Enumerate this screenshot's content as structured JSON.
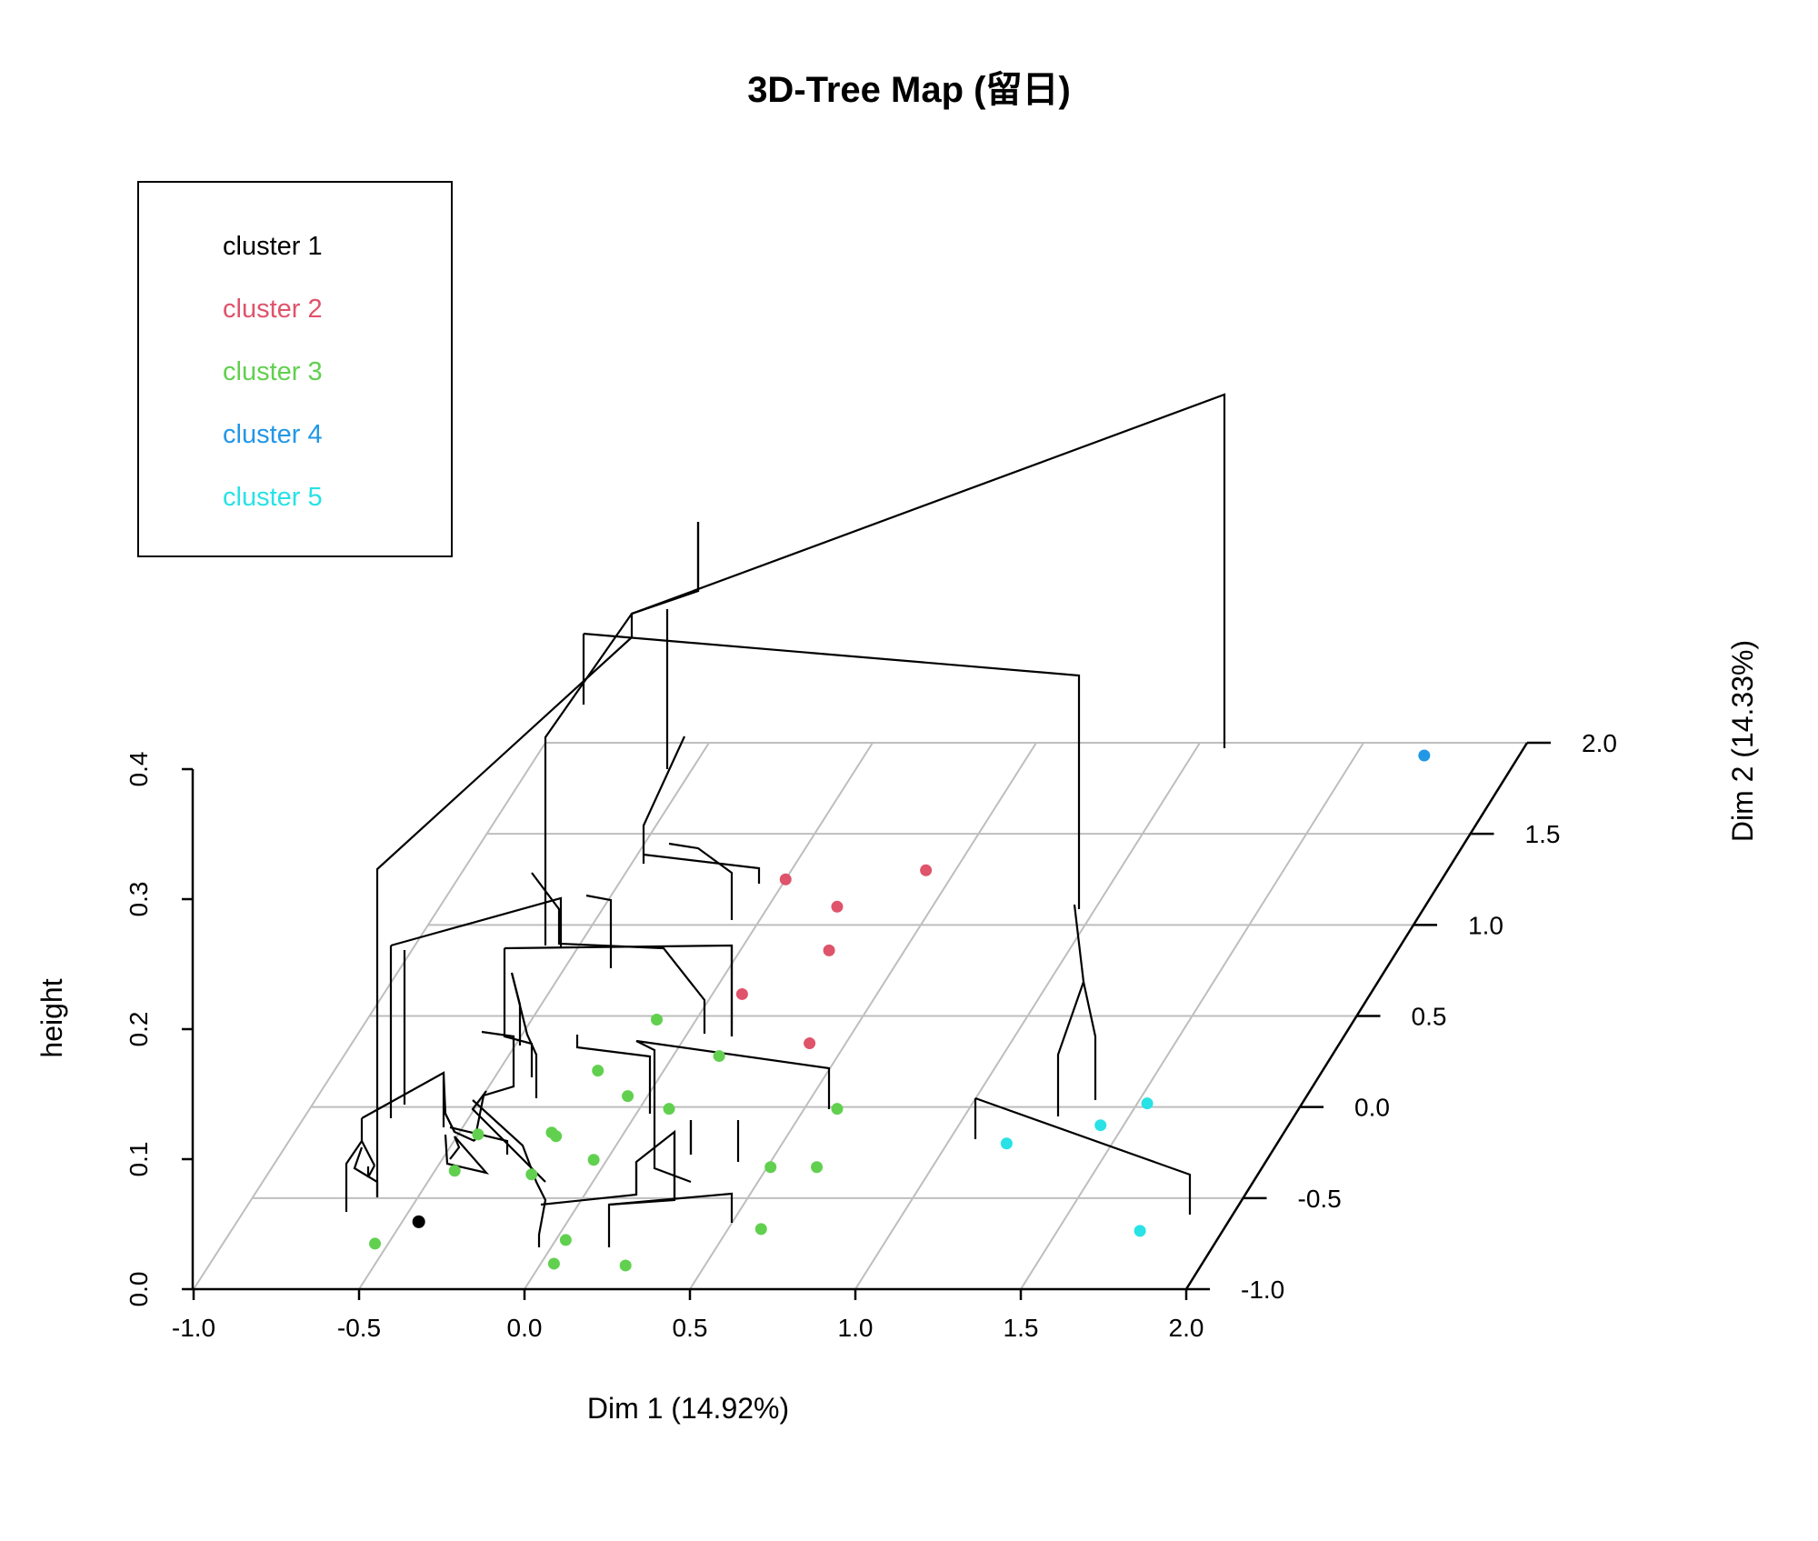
{
  "chart_data": {
    "type": "3d-tree-map",
    "title": "3D-Tree Map (留日)",
    "xlabel": "Dim 1 (14.92%)",
    "ylabel": "Dim 2 (14.33%)",
    "zlabel": "height",
    "xlim": [
      -1.0,
      2.0
    ],
    "ylim": [
      -1.0,
      2.0
    ],
    "zlim": [
      0.0,
      0.4
    ],
    "x_ticks": [
      "-1.0",
      "-0.5",
      "0.0",
      "0.5",
      "1.0",
      "1.5",
      "2.0"
    ],
    "y_ticks": [
      "-1.0",
      "-0.5",
      "0.0",
      "0.5",
      "1.0",
      "1.5",
      "2.0"
    ],
    "z_ticks": [
      "0.0",
      "0.1",
      "0.2",
      "0.3",
      "0.4"
    ],
    "legend": [
      {
        "label": "cluster 1",
        "color": "#000000"
      },
      {
        "label": "cluster 2",
        "color": "#DF536B"
      },
      {
        "label": "cluster 3",
        "color": "#61D04F"
      },
      {
        "label": "cluster 4",
        "color": "#2297E6"
      },
      {
        "label": "cluster 5",
        "color": "#28E2E5"
      }
    ],
    "points": [
      {
        "x": -0.45,
        "y": -0.63,
        "cluster": 1
      },
      {
        "x": 0.0,
        "y": 1.25,
        "cluster": 2
      },
      {
        "x": 0.21,
        "y": 1.1,
        "cluster": 2
      },
      {
        "x": 0.41,
        "y": 1.3,
        "cluster": 2
      },
      {
        "x": 0.27,
        "y": 0.86,
        "cluster": 2
      },
      {
        "x": 0.09,
        "y": 0.62,
        "cluster": 2
      },
      {
        "x": 0.39,
        "y": 0.35,
        "cluster": 2
      },
      {
        "x": -0.54,
        "y": -0.75,
        "cluster": 3
      },
      {
        "x": -0.44,
        "y": -0.35,
        "cluster": 3
      },
      {
        "x": -0.44,
        "y": -0.15,
        "cluster": 3
      },
      {
        "x": -0.2,
        "y": -0.37,
        "cluster": 3
      },
      {
        "x": -0.22,
        "y": -0.14,
        "cluster": 3
      },
      {
        "x": -0.2,
        "y": -0.16,
        "cluster": 3
      },
      {
        "x": -0.04,
        "y": -0.29,
        "cluster": 3
      },
      {
        "x": -0.2,
        "y": 0.2,
        "cluster": 3
      },
      {
        "x": -0.12,
        "y": 0.48,
        "cluster": 3
      },
      {
        "x": -0.06,
        "y": 0.06,
        "cluster": 3
      },
      {
        "x": 0.09,
        "y": -0.01,
        "cluster": 3
      },
      {
        "x": 0.14,
        "y": 0.28,
        "cluster": 3
      },
      {
        "x": 0.6,
        "y": -0.01,
        "cluster": 3
      },
      {
        "x": 0.03,
        "y": -0.73,
        "cluster": 3
      },
      {
        "x": 0.04,
        "y": -0.86,
        "cluster": 3
      },
      {
        "x": 0.26,
        "y": -0.87,
        "cluster": 3
      },
      {
        "x": 0.51,
        "y": -0.33,
        "cluster": 3
      },
      {
        "x": 0.65,
        "y": -0.33,
        "cluster": 3
      },
      {
        "x": 0.6,
        "y": -0.67,
        "cluster": 3
      },
      {
        "x": 1.71,
        "y": 1.93,
        "cluster": 4
      },
      {
        "x": 1.18,
        "y": -0.2,
        "cluster": 5
      },
      {
        "x": 1.43,
        "y": -0.1,
        "cluster": 5
      },
      {
        "x": 1.53,
        "y": 0.02,
        "cluster": 5
      },
      {
        "x": 1.75,
        "y": -0.68,
        "cluster": 5
      }
    ]
  }
}
